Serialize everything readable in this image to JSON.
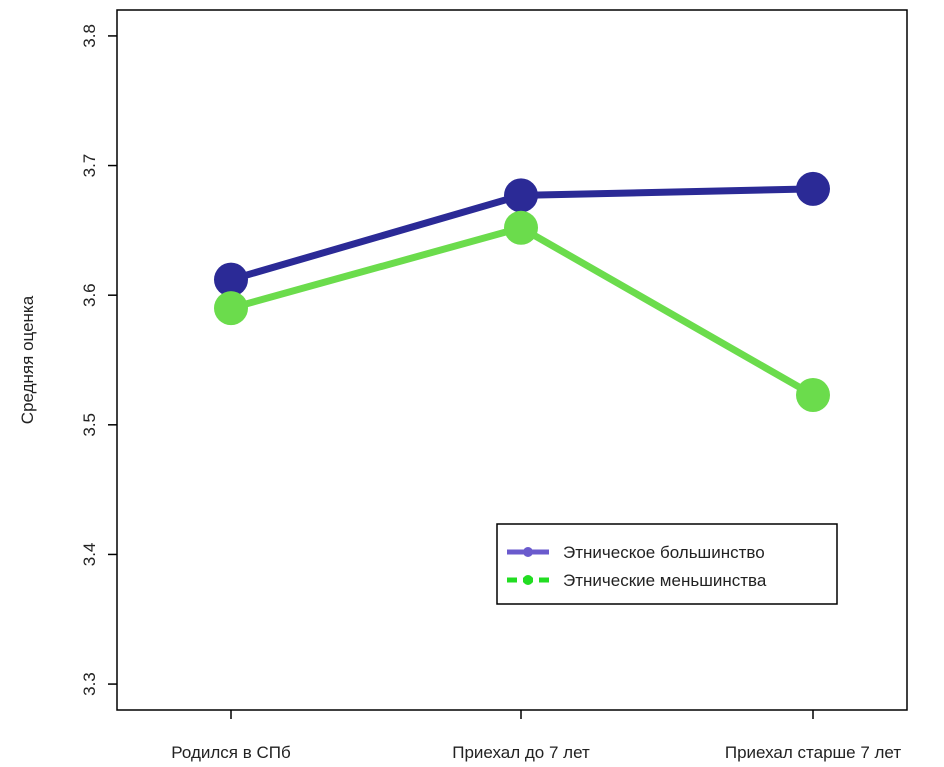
{
  "chart_data": {
    "type": "line",
    "ylabel": "Средняя оценка",
    "xlabel": "",
    "categories": [
      "Родился в СПб",
      "Приехал до 7 лет",
      "Приехал старше 7 лет"
    ],
    "yticks": [
      "3.3",
      "3.4",
      "3.5",
      "3.6",
      "3.7",
      "3.8"
    ],
    "ylim": [
      3.28,
      3.82
    ],
    "series": [
      {
        "name": "Этническое большинство",
        "values": [
          3.612,
          3.677,
          3.682
        ],
        "line_color": "#2b2a96",
        "legend_color": "#6a5acd",
        "line_style": "solid"
      },
      {
        "name": "Этнические меньшинства",
        "values": [
          3.59,
          3.652,
          3.523
        ],
        "line_color": "#6bdc4c",
        "legend_color": "#22dd22",
        "line_style": "dashed"
      }
    ],
    "legend_position": "bottom-right",
    "grid": false
  }
}
